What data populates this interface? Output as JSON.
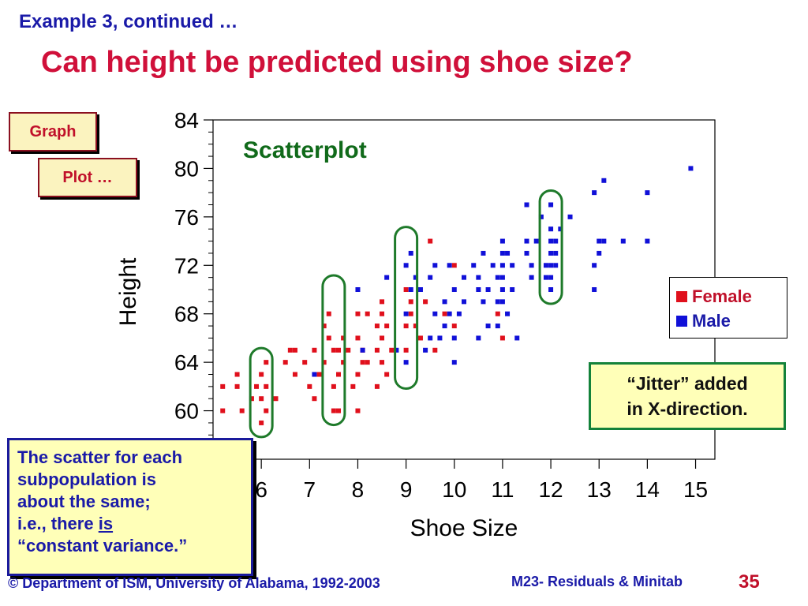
{
  "slide": {
    "subtitle": "Example 3, continued …",
    "title": "Can height be predicted using shoe size?",
    "menu": {
      "graph": "Graph",
      "plot": "Plot …"
    },
    "notes": {
      "jitter_line1": "“Jitter” added",
      "jitter_line2": "in X-direction.",
      "scatter_line1": "The scatter for each",
      "scatter_line2": "subpopulation is",
      "scatter_line3": "about the same;",
      "scatter_line4_pre": "i.e., there ",
      "scatter_line4_emph": "is",
      "scatter_line5": "“constant variance.”"
    },
    "footer": {
      "left": "© Department of ISM, University of Alabama, 1992-2003",
      "right": "M23-  Residuals &  Minitab",
      "page": "35"
    }
  },
  "colors": {
    "female": "#e0101c",
    "male": "#1010d8",
    "circle": "#1e7a2a",
    "plot_title": "#106a1a"
  },
  "chart_data": {
    "type": "scatter",
    "title": "Scatterplot",
    "xlabel": "Shoe Size",
    "ylabel": "Height",
    "xlim": [
      5.0,
      15.4
    ],
    "ylim": [
      56.0,
      84.0
    ],
    "xticks": [
      "6",
      "7",
      "8",
      "9",
      "10",
      "11",
      "12",
      "13",
      "14",
      "15"
    ],
    "yticks": [
      "60",
      "64",
      "68",
      "72",
      "76",
      "80",
      "84"
    ],
    "legend": [
      "Female",
      "Male"
    ],
    "legend_position": "right",
    "highlighted_x": [
      6,
      7.5,
      9,
      12
    ],
    "series": [
      {
        "name": "Female",
        "points": [
          [
            5.2,
            62
          ],
          [
            5.2,
            60
          ],
          [
            5.5,
            63
          ],
          [
            5.5,
            62
          ],
          [
            5.6,
            60
          ],
          [
            5.8,
            61
          ],
          [
            5.9,
            62
          ],
          [
            6.0,
            63
          ],
          [
            6.0,
            61
          ],
          [
            6.0,
            59
          ],
          [
            6.1,
            64
          ],
          [
            6.1,
            62
          ],
          [
            6.1,
            60
          ],
          [
            6.3,
            61
          ],
          [
            6.5,
            64
          ],
          [
            6.6,
            65
          ],
          [
            6.7,
            65
          ],
          [
            6.7,
            63
          ],
          [
            6.9,
            64
          ],
          [
            7.0,
            62
          ],
          [
            7.1,
            65
          ],
          [
            7.1,
            61
          ],
          [
            7.2,
            63
          ],
          [
            7.3,
            64
          ],
          [
            7.3,
            67
          ],
          [
            7.4,
            68
          ],
          [
            7.4,
            66
          ],
          [
            7.5,
            65
          ],
          [
            7.5,
            62
          ],
          [
            7.5,
            60
          ],
          [
            7.6,
            65
          ],
          [
            7.6,
            63
          ],
          [
            7.6,
            60
          ],
          [
            7.7,
            66
          ],
          [
            7.7,
            64
          ],
          [
            7.8,
            65
          ],
          [
            7.9,
            62
          ],
          [
            8.0,
            68
          ],
          [
            8.0,
            66
          ],
          [
            8.0,
            63
          ],
          [
            8.0,
            60
          ],
          [
            8.1,
            65
          ],
          [
            8.1,
            64
          ],
          [
            8.2,
            68
          ],
          [
            8.2,
            64
          ],
          [
            8.4,
            67
          ],
          [
            8.4,
            65
          ],
          [
            8.4,
            62
          ],
          [
            8.5,
            69
          ],
          [
            8.5,
            68
          ],
          [
            8.5,
            66
          ],
          [
            8.5,
            64
          ],
          [
            8.6,
            67
          ],
          [
            8.6,
            63
          ],
          [
            8.7,
            65
          ],
          [
            9.0,
            70
          ],
          [
            9.0,
            67
          ],
          [
            9.0,
            65
          ],
          [
            9.1,
            69
          ],
          [
            9.1,
            68
          ],
          [
            9.2,
            67
          ],
          [
            9.3,
            66
          ],
          [
            9.4,
            69
          ],
          [
            9.5,
            74
          ],
          [
            9.6,
            65
          ],
          [
            9.8,
            68
          ],
          [
            10.0,
            72
          ],
          [
            10.0,
            67
          ],
          [
            10.9,
            68
          ],
          [
            11.0,
            66
          ]
        ]
      },
      {
        "name": "Male",
        "points": [
          [
            7.1,
            63
          ],
          [
            8.0,
            70
          ],
          [
            8.1,
            65
          ],
          [
            8.6,
            71
          ],
          [
            8.8,
            65
          ],
          [
            9.0,
            64
          ],
          [
            9.0,
            68
          ],
          [
            9.0,
            72
          ],
          [
            9.1,
            73
          ],
          [
            9.1,
            70
          ],
          [
            9.2,
            71
          ],
          [
            9.3,
            70
          ],
          [
            9.4,
            65
          ],
          [
            9.5,
            66
          ],
          [
            9.5,
            71
          ],
          [
            9.6,
            68
          ],
          [
            9.6,
            72
          ],
          [
            9.7,
            66
          ],
          [
            9.8,
            69
          ],
          [
            9.8,
            67
          ],
          [
            9.9,
            72
          ],
          [
            9.9,
            68
          ],
          [
            10.0,
            70
          ],
          [
            10.0,
            66
          ],
          [
            10.0,
            64
          ],
          [
            10.1,
            68
          ],
          [
            10.2,
            71
          ],
          [
            10.2,
            69
          ],
          [
            10.4,
            72
          ],
          [
            10.5,
            71
          ],
          [
            10.5,
            70
          ],
          [
            10.5,
            66
          ],
          [
            10.6,
            73
          ],
          [
            10.6,
            69
          ],
          [
            10.7,
            70
          ],
          [
            10.7,
            67
          ],
          [
            10.8,
            72
          ],
          [
            10.9,
            71
          ],
          [
            10.9,
            69
          ],
          [
            10.9,
            67
          ],
          [
            11.0,
            74
          ],
          [
            11.0,
            73
          ],
          [
            11.0,
            72
          ],
          [
            11.0,
            71
          ],
          [
            11.0,
            70
          ],
          [
            11.0,
            69
          ],
          [
            11.1,
            73
          ],
          [
            11.1,
            68
          ],
          [
            11.2,
            72
          ],
          [
            11.2,
            70
          ],
          [
            11.3,
            66
          ],
          [
            11.5,
            77
          ],
          [
            11.5,
            74
          ],
          [
            11.5,
            73
          ],
          [
            11.6,
            72
          ],
          [
            11.6,
            71
          ],
          [
            11.7,
            74
          ],
          [
            11.8,
            76
          ],
          [
            11.9,
            72
          ],
          [
            11.9,
            71
          ],
          [
            12.0,
            77
          ],
          [
            12.0,
            75
          ],
          [
            12.0,
            74
          ],
          [
            12.0,
            73
          ],
          [
            12.0,
            72
          ],
          [
            12.0,
            71
          ],
          [
            12.0,
            70
          ],
          [
            12.1,
            74
          ],
          [
            12.1,
            73
          ],
          [
            12.1,
            72
          ],
          [
            12.2,
            75
          ],
          [
            12.4,
            76
          ],
          [
            12.9,
            78
          ],
          [
            12.9,
            72
          ],
          [
            12.9,
            70
          ],
          [
            13.0,
            73
          ],
          [
            13.0,
            74
          ],
          [
            13.1,
            79
          ],
          [
            13.1,
            74
          ],
          [
            13.5,
            74
          ],
          [
            14.0,
            78
          ],
          [
            14.0,
            74
          ],
          [
            14.9,
            80
          ]
        ]
      }
    ]
  }
}
